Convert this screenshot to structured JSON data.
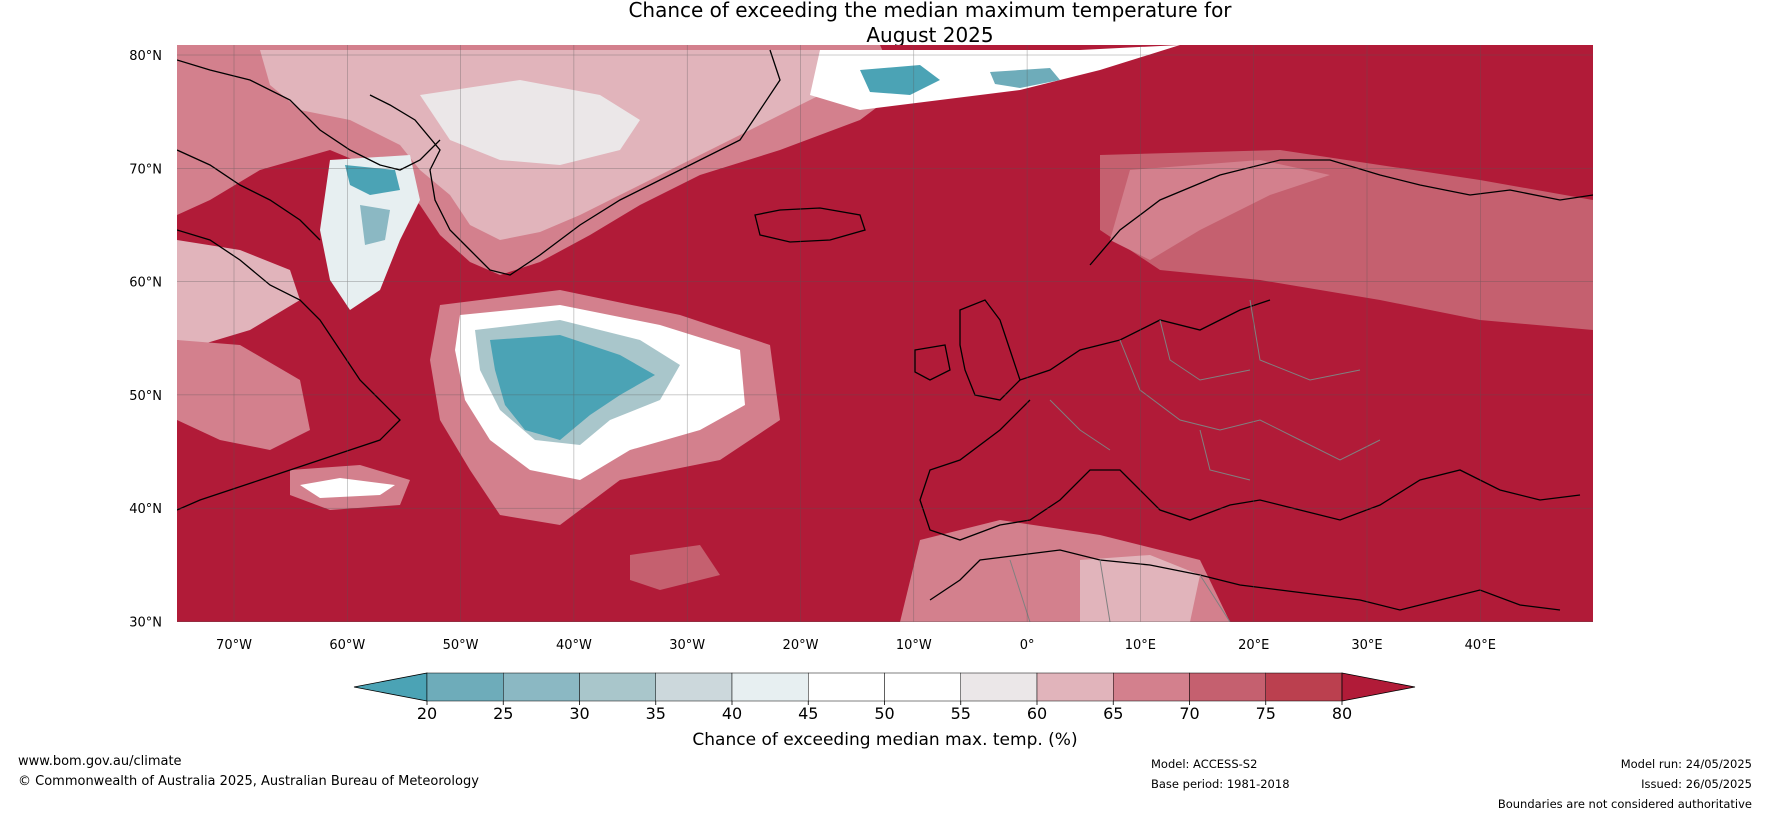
{
  "title_line1": "Chance of exceeding the median maximum temperature for",
  "title_line2": "August 2025",
  "lat_labels": [
    "80°N",
    "70°N",
    "60°N",
    "50°N",
    "40°N",
    "30°N"
  ],
  "lon_labels": [
    "70°W",
    "60°W",
    "50°W",
    "40°W",
    "30°W",
    "20°W",
    "10°W",
    "0°",
    "10°E",
    "20°E",
    "30°E",
    "40°E"
  ],
  "colorbar": {
    "ticks": [
      "20",
      "25",
      "30",
      "35",
      "40",
      "45",
      "50",
      "55",
      "60",
      "65",
      "70",
      "75",
      "80"
    ],
    "colors": [
      "#4ba3b5",
      "#6eacba",
      "#8bb8c3",
      "#a9c6cb",
      "#ccd8dc",
      "#e7eff1",
      "#ffffff",
      "#ffffff",
      "#ebe7e8",
      "#e1b4bb",
      "#d3808d",
      "#c5606f",
      "#bb404f",
      "#b11b38"
    ],
    "label": "Chance of exceeding median max. temp. (%)"
  },
  "colors": {
    "base": "#b11b38",
    "high": "#bb404f",
    "mid": "#d3808d",
    "pale": "#e1b4bb",
    "white": "#ffffff",
    "blue": "#4ba3b5",
    "coast": "#000000",
    "border": "#808080"
  },
  "footer": {
    "website": "www.bom.gov.au/climate",
    "copyright": "© Commonwealth of Australia 2025, Australian Bureau of Meteorology",
    "model": "Model: ACCESS-S2",
    "base_period": "Base period: 1981-2018",
    "model_run": "Model run: 24/05/2025",
    "issued": "Issued: 26/05/2025",
    "disclaimer": "Boundaries are not considered authoritative"
  }
}
